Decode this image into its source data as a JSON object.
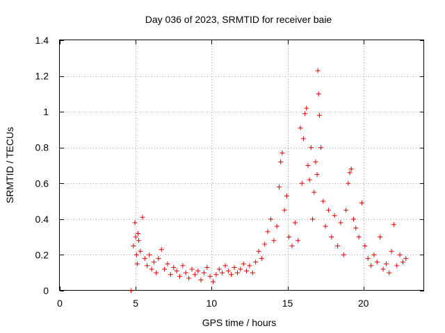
{
  "chart_data": {
    "type": "scatter",
    "title": "Day 036 of 2023, SRMTID for receiver baie",
    "xlabel": "GPS time / hours",
    "ylabel": "SRMTID / TECUs",
    "xlim": [
      0,
      24
    ],
    "ylim": [
      0,
      1.4
    ],
    "xticks": [
      0,
      5,
      10,
      15,
      20
    ],
    "xtick_labels": [
      "0",
      "5",
      "10",
      "15",
      "20"
    ],
    "yticks": [
      0,
      0.2,
      0.4,
      0.6,
      0.8,
      1,
      1.2,
      1.4
    ],
    "ytick_labels": [
      "0",
      "0.2",
      "0.4",
      "0.6",
      "0.8",
      "1",
      "1.2",
      "1.4"
    ],
    "grid": true,
    "marker": "+",
    "series": [
      {
        "name": "SRMTID",
        "color": "#e00000",
        "x": [
          4.7,
          4.85,
          4.95,
          5.0,
          5.05,
          5.1,
          5.15,
          5.2,
          5.3,
          5.45,
          5.6,
          5.75,
          5.9,
          6.05,
          6.2,
          6.35,
          6.5,
          6.7,
          6.9,
          7.1,
          7.3,
          7.5,
          7.7,
          7.9,
          8.1,
          8.3,
          8.5,
          8.7,
          8.9,
          9.1,
          9.3,
          9.5,
          9.7,
          9.9,
          10.1,
          10.3,
          10.5,
          10.7,
          10.9,
          11.1,
          11.3,
          11.5,
          11.7,
          11.9,
          12.1,
          12.3,
          12.5,
          12.7,
          12.9,
          13.1,
          13.3,
          13.5,
          13.7,
          13.9,
          14.1,
          14.3,
          14.45,
          14.55,
          14.65,
          14.8,
          14.95,
          15.1,
          15.3,
          15.5,
          15.7,
          15.85,
          15.95,
          16.05,
          16.15,
          16.25,
          16.35,
          16.45,
          16.55,
          16.65,
          16.75,
          16.85,
          16.95,
          17.0,
          17.05,
          17.1,
          17.2,
          17.35,
          17.5,
          17.7,
          17.9,
          18.1,
          18.3,
          18.5,
          18.7,
          18.85,
          19.0,
          19.1,
          19.2,
          19.35,
          19.5,
          19.7,
          19.9,
          20.1,
          20.3,
          20.5,
          20.7,
          20.9,
          21.1,
          21.3,
          21.5,
          21.7,
          21.85,
          22.0,
          22.2,
          22.4,
          22.6,
          22.8
        ],
        "y": [
          0.0,
          0.25,
          0.38,
          0.3,
          0.2,
          0.15,
          0.32,
          0.28,
          0.22,
          0.41,
          0.18,
          0.14,
          0.2,
          0.12,
          0.16,
          0.1,
          0.18,
          0.23,
          0.12,
          0.15,
          0.09,
          0.13,
          0.11,
          0.08,
          0.14,
          0.1,
          0.07,
          0.12,
          0.09,
          0.11,
          0.06,
          0.1,
          0.13,
          0.08,
          0.05,
          0.09,
          0.12,
          0.1,
          0.14,
          0.11,
          0.09,
          0.13,
          0.1,
          0.12,
          0.15,
          0.11,
          0.14,
          0.1,
          0.16,
          0.22,
          0.18,
          0.26,
          0.33,
          0.4,
          0.28,
          0.36,
          0.58,
          0.72,
          0.77,
          0.45,
          0.53,
          0.3,
          0.25,
          0.38,
          0.28,
          0.91,
          0.6,
          0.85,
          0.99,
          1.02,
          0.7,
          0.62,
          0.8,
          0.4,
          0.55,
          0.72,
          0.65,
          1.23,
          1.1,
          0.98,
          0.8,
          0.5,
          0.36,
          0.45,
          0.3,
          0.42,
          0.25,
          0.38,
          0.2,
          0.45,
          0.6,
          0.66,
          0.68,
          0.4,
          0.35,
          0.3,
          0.49,
          0.25,
          0.18,
          0.14,
          0.2,
          0.16,
          0.3,
          0.12,
          0.15,
          0.1,
          0.22,
          0.37,
          0.14,
          0.2,
          0.16,
          0.18
        ]
      }
    ]
  }
}
